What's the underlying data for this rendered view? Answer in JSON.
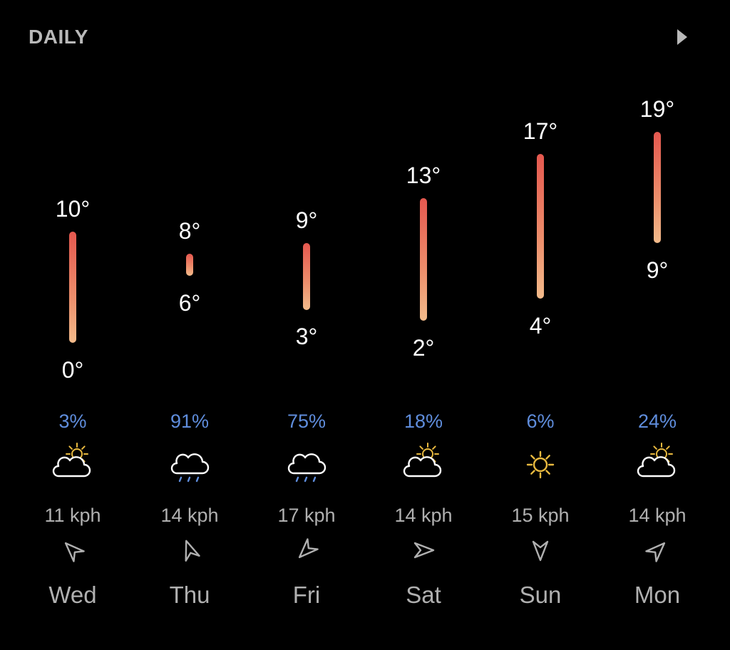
{
  "header": {
    "title": "DAILY",
    "arrow_icon": "play-arrow-icon"
  },
  "colors": {
    "background": "#000000",
    "bar_top": "#e5584f",
    "bar_bottom": "#f3bb8b",
    "precip_text": "#5f8ddc",
    "secondary_text": "#b0b0b0",
    "sun": "#e8b93f"
  },
  "days": [
    {
      "name": "Wed",
      "high": "10°",
      "low": "0°",
      "high_value": 10,
      "low_value": 0,
      "precip": "3%",
      "icon": "partly-cloudy-icon",
      "wind_speed": "11 kph",
      "wind_dir": "wind-direction-icon",
      "wind_angle": -45
    },
    {
      "name": "Thu",
      "high": "8°",
      "low": "6°",
      "high_value": 8,
      "low_value": 6,
      "precip": "91%",
      "icon": "rain-cloud-icon",
      "wind_speed": "14 kph",
      "wind_dir": "wind-direction-icon",
      "wind_angle": -20
    },
    {
      "name": "Fri",
      "high": "9°",
      "low": "3°",
      "high_value": 9,
      "low_value": 3,
      "precip": "75%",
      "icon": "rain-cloud-icon",
      "wind_speed": "17 kph",
      "wind_dir": "wind-direction-icon",
      "wind_angle": -135
    },
    {
      "name": "Sat",
      "high": "13°",
      "low": "2°",
      "high_value": 13,
      "low_value": 2,
      "precip": "18%",
      "icon": "partly-cloudy-icon",
      "wind_speed": "14 kph",
      "wind_dir": "wind-direction-icon",
      "wind_angle": 90
    },
    {
      "name": "Sun",
      "high": "17°",
      "low": "4°",
      "high_value": 17,
      "low_value": 4,
      "precip": "6%",
      "icon": "sun-icon",
      "wind_speed": "15 kph",
      "wind_dir": "wind-direction-icon",
      "wind_angle": 180
    },
    {
      "name": "Mon",
      "high": "19°",
      "low": "9°",
      "high_value": 19,
      "low_value": 9,
      "precip": "24%",
      "icon": "partly-cloudy-icon",
      "wind_speed": "14 kph",
      "wind_dir": "wind-direction-icon",
      "wind_angle": 45
    }
  ]
}
